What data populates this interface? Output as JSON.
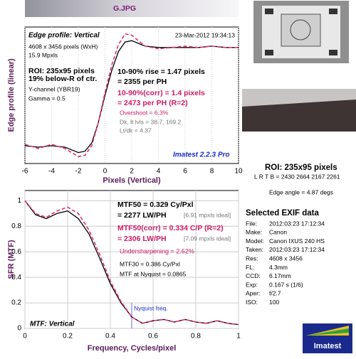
{
  "title": "G.JPG",
  "chart_data": [
    {
      "type": "line",
      "title": "Edge profile: Vertical",
      "date": "23-Mar-2012 19:34:13",
      "xlabel": "Pixels (Vertical)",
      "ylabel": "Edge profile (linear)",
      "x": [
        -6,
        -5,
        -4,
        -3,
        -2.5,
        -2,
        -1.5,
        -1,
        -0.5,
        0,
        0.5,
        1,
        1.5,
        2,
        2.5,
        3,
        4,
        5,
        6,
        7,
        8,
        9,
        10
      ],
      "series": [
        {
          "color": "#000000",
          "values": [
            0.13,
            0.12,
            0.13,
            0.12,
            0.1,
            0.08,
            0.09,
            0.15,
            0.3,
            0.5,
            0.68,
            0.82,
            0.89,
            0.9,
            0.88,
            0.86,
            0.85,
            0.85,
            0.85,
            0.85,
            0.86,
            0.85,
            0.85
          ]
        },
        {
          "color": "#e0306e",
          "dashed": true,
          "values": [
            0.14,
            0.11,
            0.14,
            0.11,
            0.08,
            0.05,
            0.06,
            0.13,
            0.3,
            0.52,
            0.72,
            0.87,
            0.95,
            0.94,
            0.9,
            0.86,
            0.84,
            0.85,
            0.86,
            0.85,
            0.86,
            0.85,
            0.85
          ]
        }
      ],
      "xlim": [
        -6,
        10
      ],
      "xticks": [
        -6,
        -4,
        -2,
        0,
        2,
        4,
        6,
        8,
        10
      ],
      "ylim": [
        0,
        1
      ],
      "notes": [
        "4608 x 3456 pixels (WxH)",
        "15.9 Mpxls",
        "ROI: 235x95 pixels",
        "19% below-R of ctr.",
        "Y-channel (YBR19)",
        "Gamma = 0.5",
        "10-90% rise = 1.47 pixels",
        "= 2355 per PH",
        "10-90%(corr) = 1.4 pixels",
        "= 2473 per PH  (R=2)",
        "Overshoot = 6.3%",
        "Dk, lt lvls = 38.7, 169.2",
        "Lt/dk = 4.37",
        "Imatest 2.2.3 Pro"
      ]
    },
    {
      "type": "line",
      "xlabel": "Frequency, Cycles/pixel",
      "ylabel": "SFR (MTF)",
      "x": [
        0,
        0.05,
        0.1,
        0.15,
        0.2,
        0.25,
        0.3,
        0.35,
        0.4,
        0.45,
        0.5,
        0.55,
        0.6,
        0.65,
        0.7,
        0.75,
        0.8,
        0.85,
        0.9,
        0.95,
        1
      ],
      "series": [
        {
          "color": "#000000",
          "values": [
            1,
            0.89,
            0.86,
            0.9,
            0.92,
            0.86,
            0.74,
            0.55,
            0.35,
            0.2,
            0.09,
            0.04,
            0.06,
            0.07,
            0.05,
            0.07,
            0.05,
            0.04,
            0.06,
            0.04,
            0.03
          ]
        },
        {
          "color": "#e0306e",
          "dashed": true,
          "values": [
            1,
            0.9,
            0.87,
            0.92,
            0.95,
            0.9,
            0.77,
            0.58,
            0.37,
            0.21,
            0.09,
            0.04,
            0.06,
            0.07,
            0.05,
            0.07,
            0.05,
            0.04,
            0.06,
            0.04,
            0.03
          ]
        }
      ],
      "xlim": [
        0,
        1
      ],
      "xticks": [
        0,
        0.2,
        0.4,
        0.6,
        0.8,
        1
      ],
      "ylim": [
        0,
        1.08
      ],
      "yticks": [
        0,
        0.2,
        0.4,
        0.6,
        0.8,
        1
      ],
      "grid": true,
      "nyquist": 0.5,
      "nyquist_label": "Nyquist freq.",
      "notes": [
        "MTF50 = 0.329 Cy/Pxl",
        "= 2277 LW/PH",
        "[6.91 mpxls ideal]",
        "MTF50(corr) = 0.334 C/P  (R=2)",
        "= 2306 LW/PH",
        "[7.09 mpxls ideal]",
        "Undersharpening = 2.62%",
        "MTF30 = 0.386 Cy/Pxl",
        "MTF at Nyquist = 0.0865",
        "MTF: Vertical"
      ]
    }
  ],
  "roi": {
    "title": "ROI: 235x95 pixels",
    "bounds": "L R T B = 2430 2664  2167 2261",
    "angle": "Edge angle = 4.87 degs"
  },
  "exif": {
    "title": "Selected EXIF data",
    "rows": [
      [
        "File:",
        "2012:03:23 17:12:34"
      ],
      [
        "Make:",
        "Canon"
      ],
      [
        "Model:",
        "Canon IXUS 240 HS"
      ],
      [
        "Taken:",
        "2012:03:23 17:12:34"
      ],
      [
        "Res:",
        "4608 x 3456"
      ],
      [
        "FL:",
        "4.3mm"
      ],
      [
        "CCD:",
        "6.17mm"
      ],
      [
        "Exp:",
        "0.167 s  (1/6)"
      ],
      [
        "Aper:",
        "f/2.7"
      ],
      [
        "ISO:",
        "100"
      ]
    ]
  },
  "logo": "Imatest"
}
